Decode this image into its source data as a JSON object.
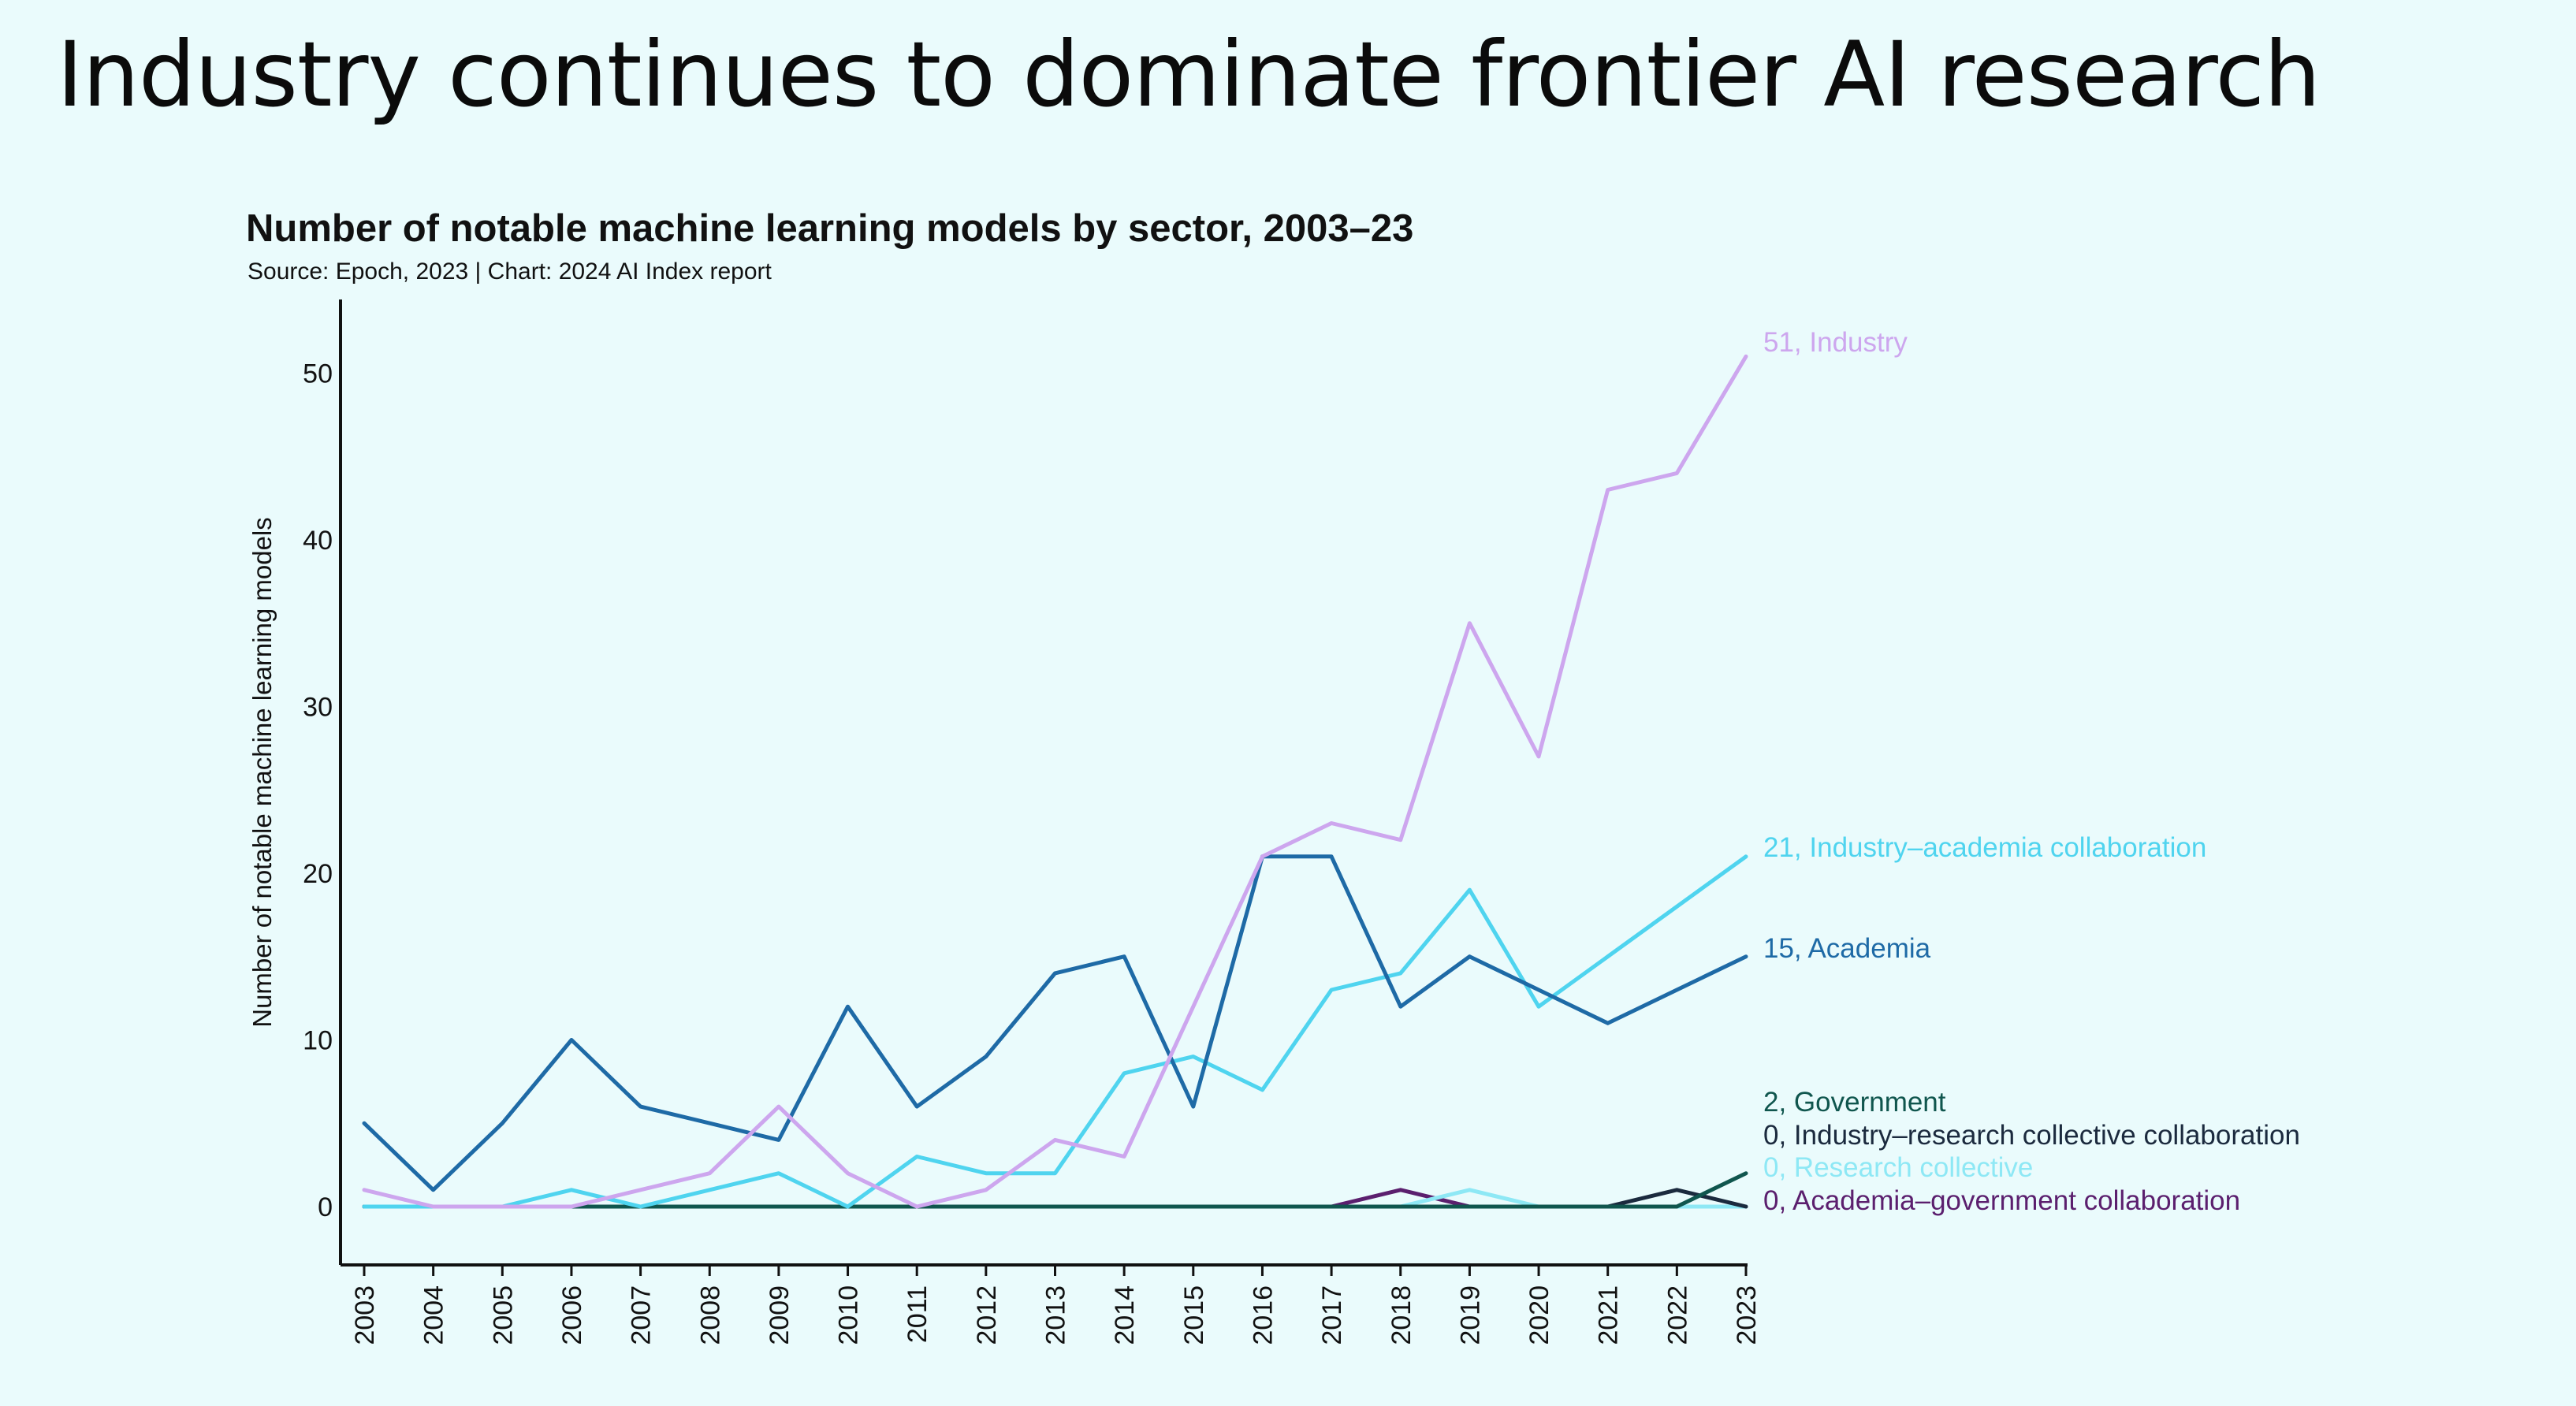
{
  "slide": {
    "title": "Industry continues to dominate frontier AI research"
  },
  "chart_data": {
    "type": "line",
    "title": "Number of notable machine learning models by sector, 2003–23",
    "subtitle": "Source: Epoch, 2023 | Chart: 2024 AI Index report",
    "xlabel": "",
    "ylabel": "Number of notable machine learning models",
    "ylim": [
      -3.5,
      53
    ],
    "yticks": [
      0,
      10,
      20,
      30,
      40,
      50
    ],
    "categories": [
      "2003",
      "2004",
      "2005",
      "2006",
      "2007",
      "2008",
      "2009",
      "2010",
      "2011",
      "2012",
      "2013",
      "2014",
      "2015",
      "2016",
      "2017",
      "2018",
      "2019",
      "2020",
      "2021",
      "2022",
      "2023"
    ],
    "grid": false,
    "series": [
      {
        "name": "Industry",
        "end_label": "51, Industry",
        "color": "#cda6ee",
        "values": [
          1,
          0,
          0,
          0,
          1,
          2,
          6,
          2,
          0,
          1,
          4,
          3,
          12,
          21,
          23,
          22,
          35,
          27,
          43,
          44,
          51
        ]
      },
      {
        "name": "Industry–academia collaboration",
        "end_label": "21, Industry–academia collaboration",
        "color": "#4fd4ef",
        "values": [
          0,
          0,
          0,
          1,
          0,
          1,
          2,
          0,
          3,
          2,
          2,
          8,
          9,
          7,
          13,
          14,
          19,
          12,
          15,
          18,
          21
        ]
      },
      {
        "name": "Academia",
        "end_label": "15, Academia",
        "color": "#1e6aa6",
        "values": [
          5,
          1,
          5,
          10,
          6,
          5,
          4,
          12,
          6,
          9,
          14,
          15,
          6,
          21,
          21,
          12,
          15,
          13,
          11,
          13,
          15
        ]
      },
      {
        "name": "Government",
        "end_label": "2, Government",
        "color": "#10564e",
        "values": [
          0,
          0,
          0,
          0,
          0,
          0,
          0,
          0,
          0,
          0,
          0,
          0,
          0,
          0,
          0,
          0,
          0,
          0,
          0,
          0,
          2
        ]
      },
      {
        "name": "Industry–research collective collaboration",
        "end_label": "0, Industry–research collective collaboration",
        "color": "#1b2a3e",
        "values": [
          0,
          0,
          0,
          0,
          0,
          0,
          0,
          0,
          0,
          0,
          0,
          0,
          0,
          0,
          0,
          0,
          0,
          0,
          0,
          1,
          0
        ]
      },
      {
        "name": "Research collective",
        "end_label": "0, Research collective",
        "color": "#8ee8f5",
        "values": [
          0,
          0,
          0,
          0,
          0,
          0,
          0,
          0,
          0,
          0,
          0,
          0,
          0,
          0,
          0,
          0,
          1,
          0,
          0,
          0,
          0
        ]
      },
      {
        "name": "Academia–government collaboration",
        "end_label": "0, Academia–government collaboration",
        "color": "#5b1f6e",
        "values": [
          0,
          0,
          0,
          0,
          0,
          0,
          0,
          0,
          0,
          0,
          0,
          0,
          0,
          0,
          0,
          1,
          0,
          0,
          0,
          0,
          0
        ]
      }
    ]
  }
}
